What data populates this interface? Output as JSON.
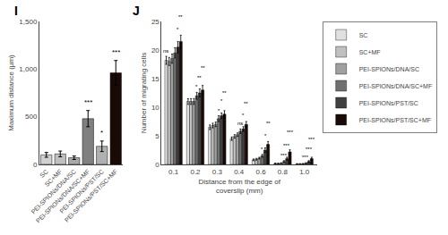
{
  "chart_data": [
    {
      "type": "bar",
      "title": "I",
      "categories": [
        "SC",
        "SC+MF",
        "PEI-SPIONs/DNA/SC",
        "PEI-SPIONs/DNA/SC+MF",
        "PEI-SPIONs/PST/SC",
        "PEI-SPIONs/PST/SC+MF"
      ],
      "values": [
        100,
        110,
        70,
        480,
        190,
        960
      ],
      "errors": [
        25,
        30,
        18,
        85,
        55,
        130
      ],
      "colors": [
        "#d0d0d0",
        "#c0c0c0",
        "#a8a8a8",
        "#808080",
        "#b0b0b0",
        "#1a0a05"
      ],
      "significance": [
        null,
        null,
        null,
        "***",
        "*",
        "***"
      ],
      "ylabel": "Maximum distance (μm)",
      "ylim": [
        0,
        1500
      ],
      "yticks": [
        0,
        500,
        {
          "value": 1000,
          "label": "1,000"
        },
        {
          "value": 1500,
          "label": "1,500"
        }
      ],
      "grid": false
    },
    {
      "type": "bar",
      "title": "J",
      "categories": [
        "0.1",
        "0.2",
        "0.3",
        "0.4",
        "0.6",
        "0.8",
        "1.0"
      ],
      "series": [
        {
          "name": "SC",
          "color": "#e0e0e0",
          "values": [
            18.2,
            11.0,
            6.5,
            4.5,
            0.8,
            0.15,
            0.08
          ],
          "errors": [
            0.7,
            0.5,
            0.4,
            0.3,
            0.15,
            0.08,
            0.05
          ],
          "significance": [
            "ns",
            null,
            null,
            null,
            null,
            null,
            null
          ]
        },
        {
          "name": "SC+MF",
          "color": "#c0c0c0",
          "values": [
            18.0,
            11.0,
            6.8,
            4.9,
            0.9,
            0.15,
            0.08
          ],
          "errors": [
            0.7,
            0.5,
            0.4,
            0.3,
            0.15,
            0.08,
            0.05
          ]
        },
        {
          "name": "PEI-SPIONs/DNA/SC",
          "color": "#a0a0a0",
          "values": [
            18.5,
            11.0,
            7.0,
            5.2,
            1.1,
            0.2,
            0.1
          ],
          "errors": [
            0.8,
            0.5,
            0.4,
            0.3,
            0.15,
            0.08,
            0.05
          ]
        },
        {
          "name": "PEI-SPIONs/DNA/SC+MF",
          "color": "#707070",
          "values": [
            19.5,
            12.0,
            8.0,
            5.8,
            1.5,
            0.5,
            0.2
          ],
          "errors": [
            0.9,
            0.6,
            0.5,
            0.4,
            0.25,
            0.15,
            0.08
          ],
          "significance": [
            null,
            "*",
            "*",
            "ns",
            "*",
            "***",
            "***"
          ]
        },
        {
          "name": "PEI-SPIONs/PST/SC",
          "color": "#404040",
          "values": [
            20.5,
            12.5,
            8.5,
            6.2,
            2.5,
            1.0,
            0.5
          ],
          "errors": [
            1.0,
            0.7,
            0.5,
            0.4,
            0.4,
            0.25,
            0.15
          ],
          "significance": [
            "*",
            "**",
            "*",
            "*",
            "*",
            "***",
            "***"
          ]
        },
        {
          "name": "PEI-SPIONs/PST/SC+MF",
          "color": "#1a0a05",
          "values": [
            21.5,
            13.0,
            8.8,
            7.0,
            3.5,
            2.2,
            1.0
          ],
          "errors": [
            1.1,
            0.8,
            0.6,
            0.5,
            0.5,
            0.35,
            0.25
          ],
          "significance": [
            "**",
            "**",
            "**",
            "**",
            "**",
            "***",
            "***"
          ]
        }
      ],
      "ylabel": "Number of migrating cells",
      "xlabel": "Distance from the edge of\ncoverslip (mm)",
      "ylim": [
        0,
        25
      ],
      "yticks": [
        0,
        5,
        10,
        15,
        20,
        25
      ],
      "legend": "upper right",
      "grid": false
    }
  ]
}
